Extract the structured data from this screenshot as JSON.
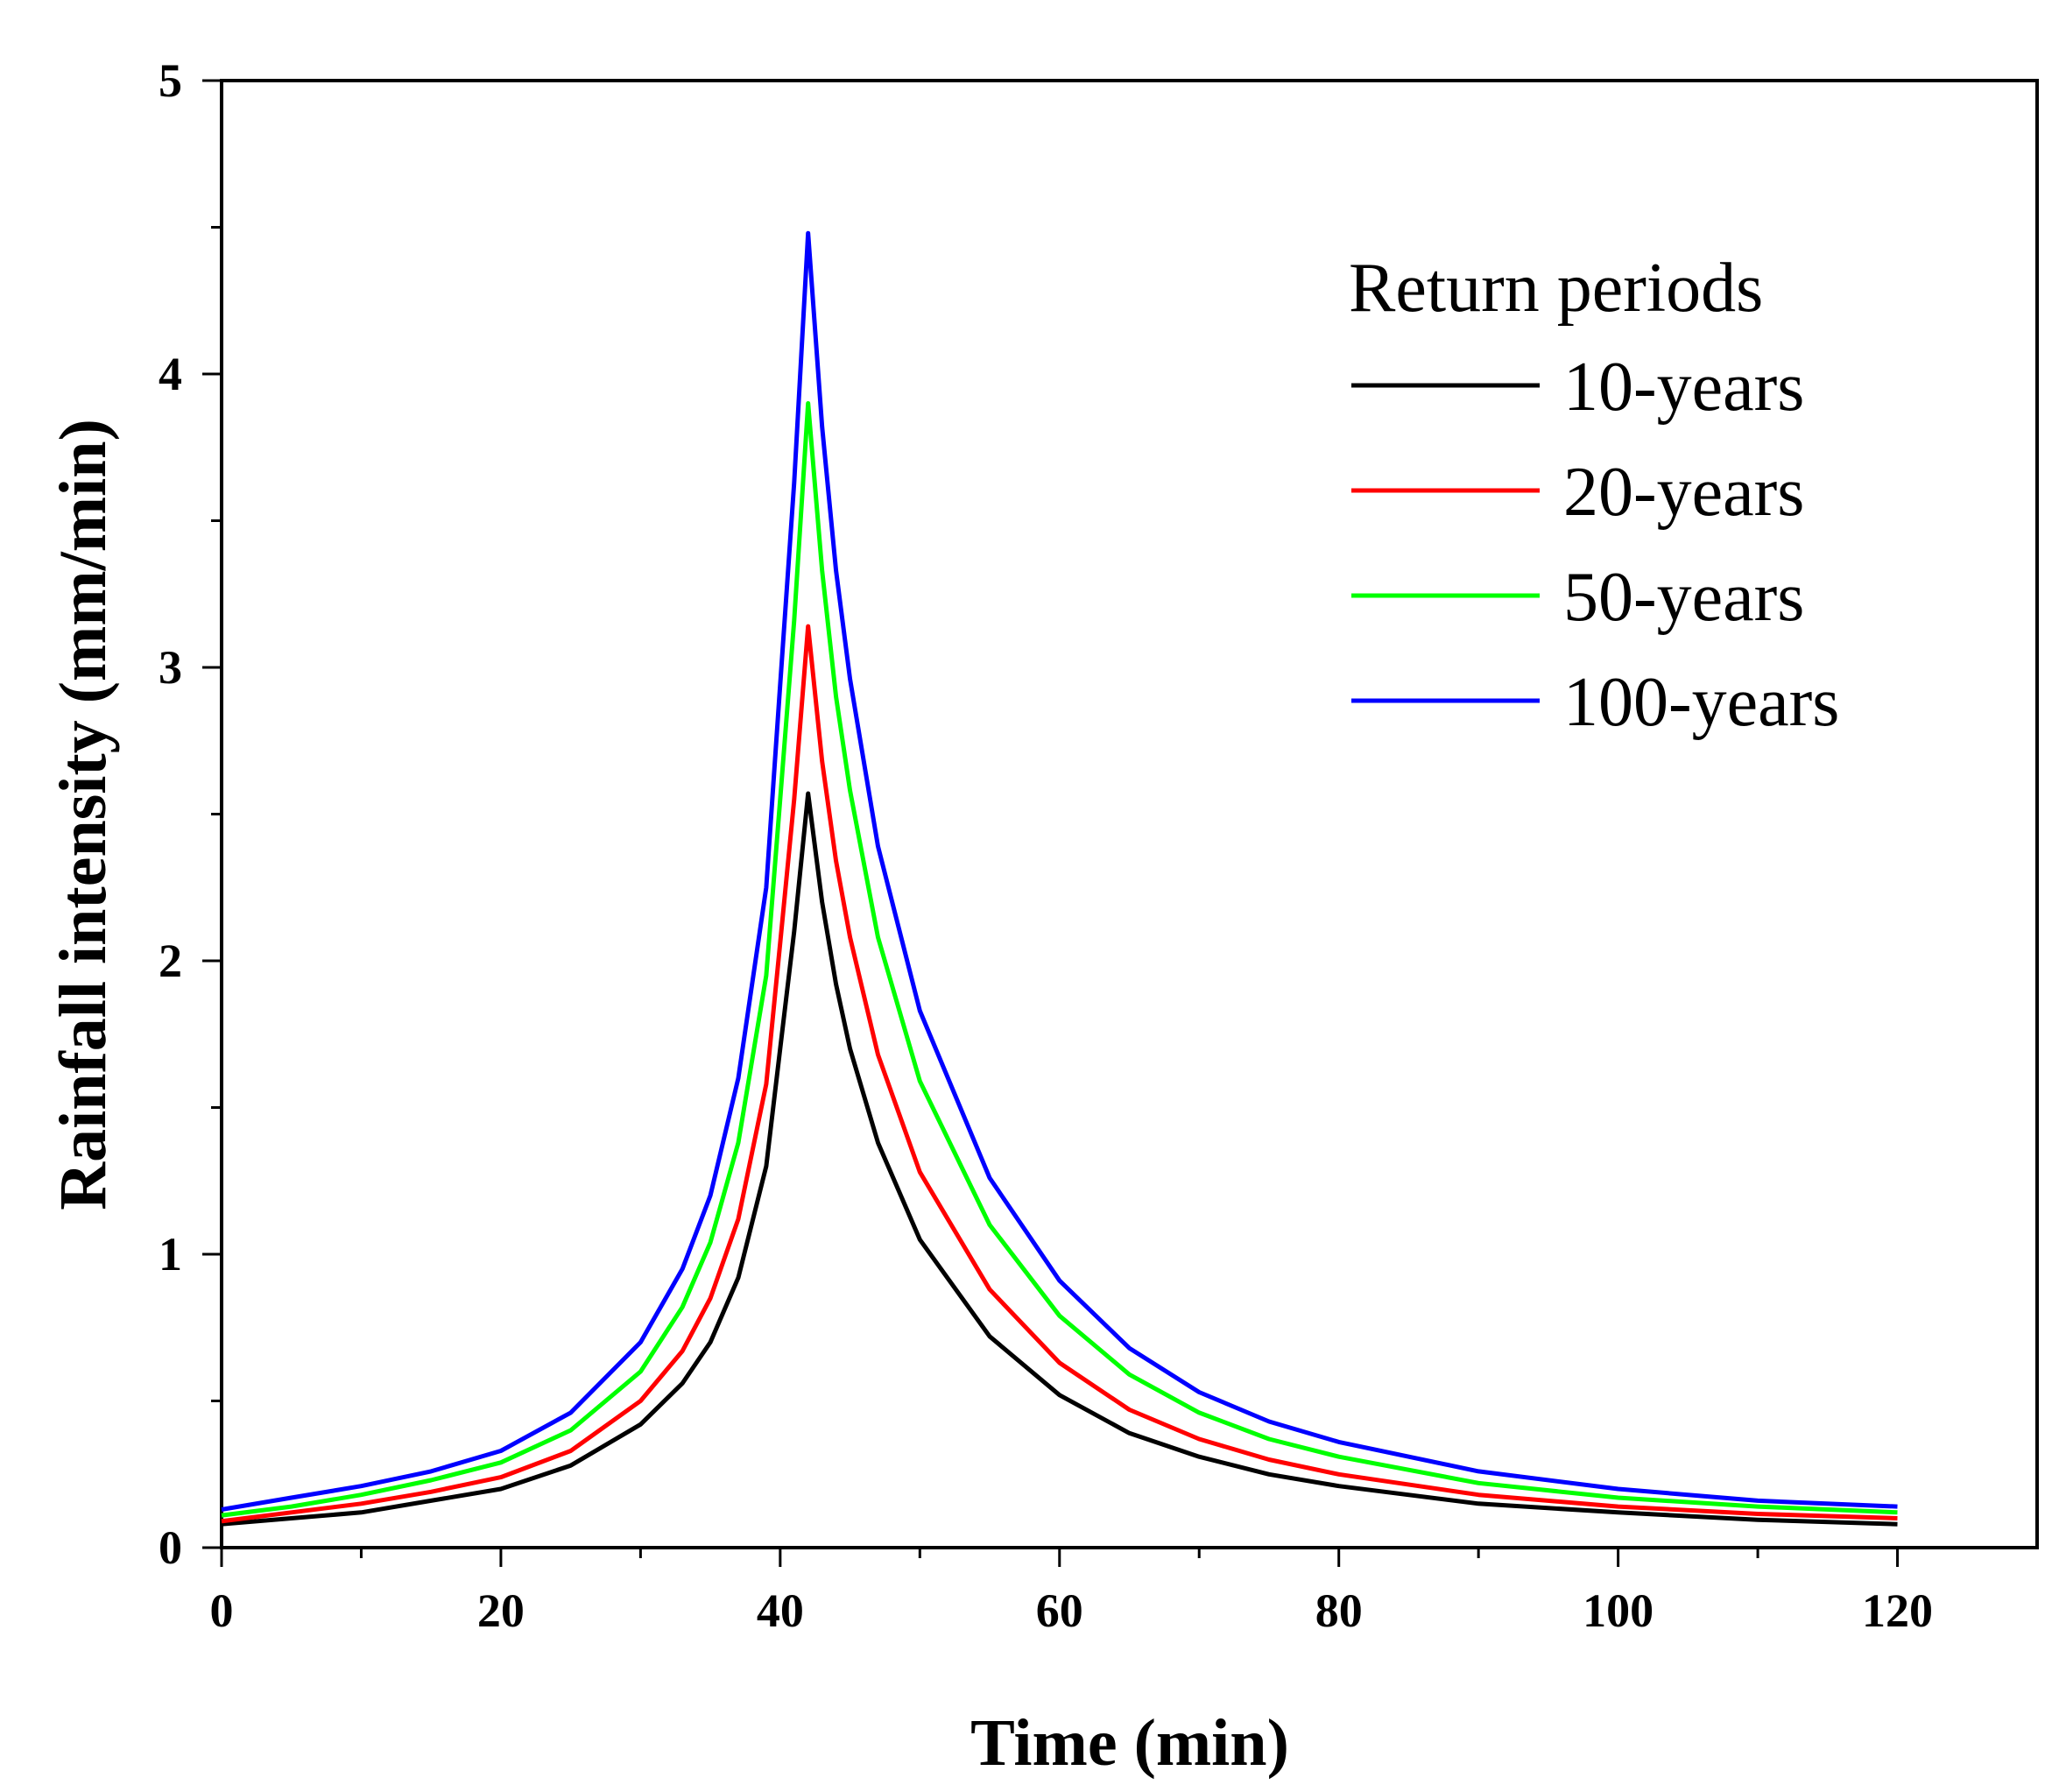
{
  "chart_data": {
    "type": "line",
    "title": "",
    "xlabel": "Time (min)",
    "ylabel": "Rainfall intensity (mm/min)",
    "xlim": [
      0,
      130
    ],
    "ylim": [
      0,
      5
    ],
    "xticks": [
      0,
      20,
      40,
      60,
      80,
      100,
      120
    ],
    "yticks": [
      0,
      1,
      2,
      3,
      4,
      5
    ],
    "x_minor_step": 10,
    "y_minor_step": 0.5,
    "grid": false,
    "legend_position": "top-right",
    "legend_title": "Return periods",
    "x": [
      0,
      5,
      10,
      15,
      20,
      25,
      30,
      33,
      35,
      37,
      39,
      40,
      41,
      42,
      43,
      44,
      45,
      47,
      50,
      55,
      60,
      65,
      70,
      75,
      80,
      90,
      100,
      110,
      120
    ],
    "series": [
      {
        "name": "10-years",
        "color": "#000000",
        "values": [
          0.08,
          0.1,
          0.12,
          0.16,
          0.2,
          0.28,
          0.42,
          0.56,
          0.7,
          0.92,
          1.3,
          1.7,
          2.1,
          2.57,
          2.2,
          1.92,
          1.7,
          1.38,
          1.05,
          0.72,
          0.52,
          0.39,
          0.31,
          0.25,
          0.21,
          0.15,
          0.12,
          0.095,
          0.08
        ]
      },
      {
        "name": "20-years",
        "color": "#ff0000",
        "values": [
          0.09,
          0.12,
          0.15,
          0.19,
          0.24,
          0.33,
          0.5,
          0.67,
          0.85,
          1.12,
          1.58,
          2.06,
          2.55,
          3.14,
          2.68,
          2.34,
          2.08,
          1.68,
          1.28,
          0.88,
          0.63,
          0.47,
          0.37,
          0.3,
          0.25,
          0.18,
          0.14,
          0.115,
          0.1
        ]
      },
      {
        "name": "50-years",
        "color": "#00ff00",
        "values": [
          0.11,
          0.14,
          0.18,
          0.23,
          0.29,
          0.4,
          0.6,
          0.82,
          1.04,
          1.38,
          1.95,
          2.55,
          3.16,
          3.9,
          3.33,
          2.9,
          2.58,
          2.08,
          1.59,
          1.1,
          0.79,
          0.59,
          0.46,
          0.37,
          0.31,
          0.22,
          0.17,
          0.14,
          0.12
        ]
      },
      {
        "name": "100-years",
        "color": "#0000ff",
        "values": [
          0.13,
          0.17,
          0.21,
          0.26,
          0.33,
          0.46,
          0.7,
          0.95,
          1.2,
          1.6,
          2.25,
          2.94,
          3.63,
          4.48,
          3.82,
          3.33,
          2.96,
          2.39,
          1.83,
          1.26,
          0.91,
          0.68,
          0.53,
          0.43,
          0.36,
          0.26,
          0.2,
          0.16,
          0.14
        ]
      }
    ]
  }
}
